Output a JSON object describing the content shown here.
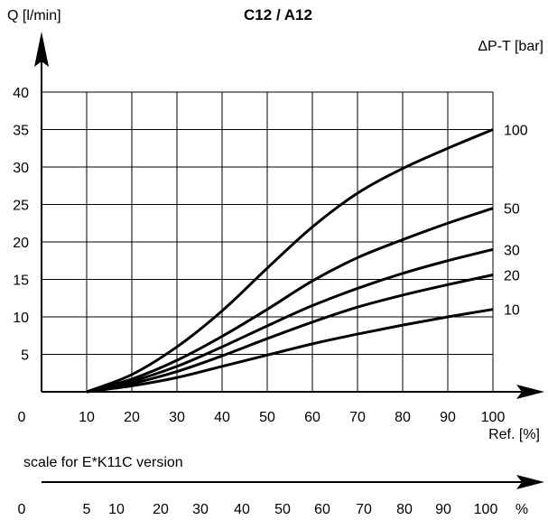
{
  "chart_data": {
    "type": "line",
    "title": "C12 / A12",
    "ylabel": "Q [l/min]",
    "xlabel": "Ref. [%]",
    "legend_title": "ΔP-T [bar]",
    "xlim": [
      0,
      100
    ],
    "ylim": [
      0,
      40
    ],
    "x_ticks": [
      10,
      20,
      30,
      40,
      50,
      60,
      70,
      80,
      90,
      100
    ],
    "y_ticks": [
      5,
      10,
      15,
      20,
      25,
      30,
      35,
      40
    ],
    "origin_label": "0",
    "grid": true,
    "series": [
      {
        "name": "100",
        "x": [
          10,
          20,
          30,
          40,
          50,
          60,
          70,
          80,
          90,
          100
        ],
        "y": [
          0,
          2.3,
          6,
          10.8,
          16.5,
          22,
          26.5,
          29.8,
          32.5,
          35
        ]
      },
      {
        "name": "50",
        "x": [
          10,
          20,
          30,
          40,
          50,
          60,
          70,
          80,
          90,
          100
        ],
        "y": [
          0,
          1.7,
          4.2,
          7.4,
          11,
          14.8,
          17.9,
          20.3,
          22.5,
          24.5
        ]
      },
      {
        "name": "30",
        "x": [
          10,
          20,
          30,
          40,
          50,
          60,
          70,
          80,
          90,
          100
        ],
        "y": [
          0,
          1.4,
          3.4,
          6,
          8.8,
          11.5,
          13.8,
          15.8,
          17.5,
          19
        ]
      },
      {
        "name": "20",
        "x": [
          10,
          20,
          30,
          40,
          50,
          60,
          70,
          80,
          90,
          100
        ],
        "y": [
          0,
          1.1,
          2.7,
          4.8,
          7.1,
          9.3,
          11.3,
          12.9,
          14.3,
          15.6
        ]
      },
      {
        "name": "10",
        "x": [
          10,
          20,
          30,
          40,
          50,
          60,
          70,
          80,
          90,
          100
        ],
        "y": [
          0,
          0.8,
          1.9,
          3.4,
          4.9,
          6.4,
          7.7,
          8.9,
          10,
          11
        ]
      }
    ]
  },
  "secondary_scale": {
    "caption": "scale for E*K11C version",
    "origin_label": "0",
    "ticks": [
      "5",
      "10",
      "20",
      "30",
      "40",
      "50",
      "60",
      "70",
      "80",
      "90",
      "100"
    ],
    "unit": "%"
  }
}
